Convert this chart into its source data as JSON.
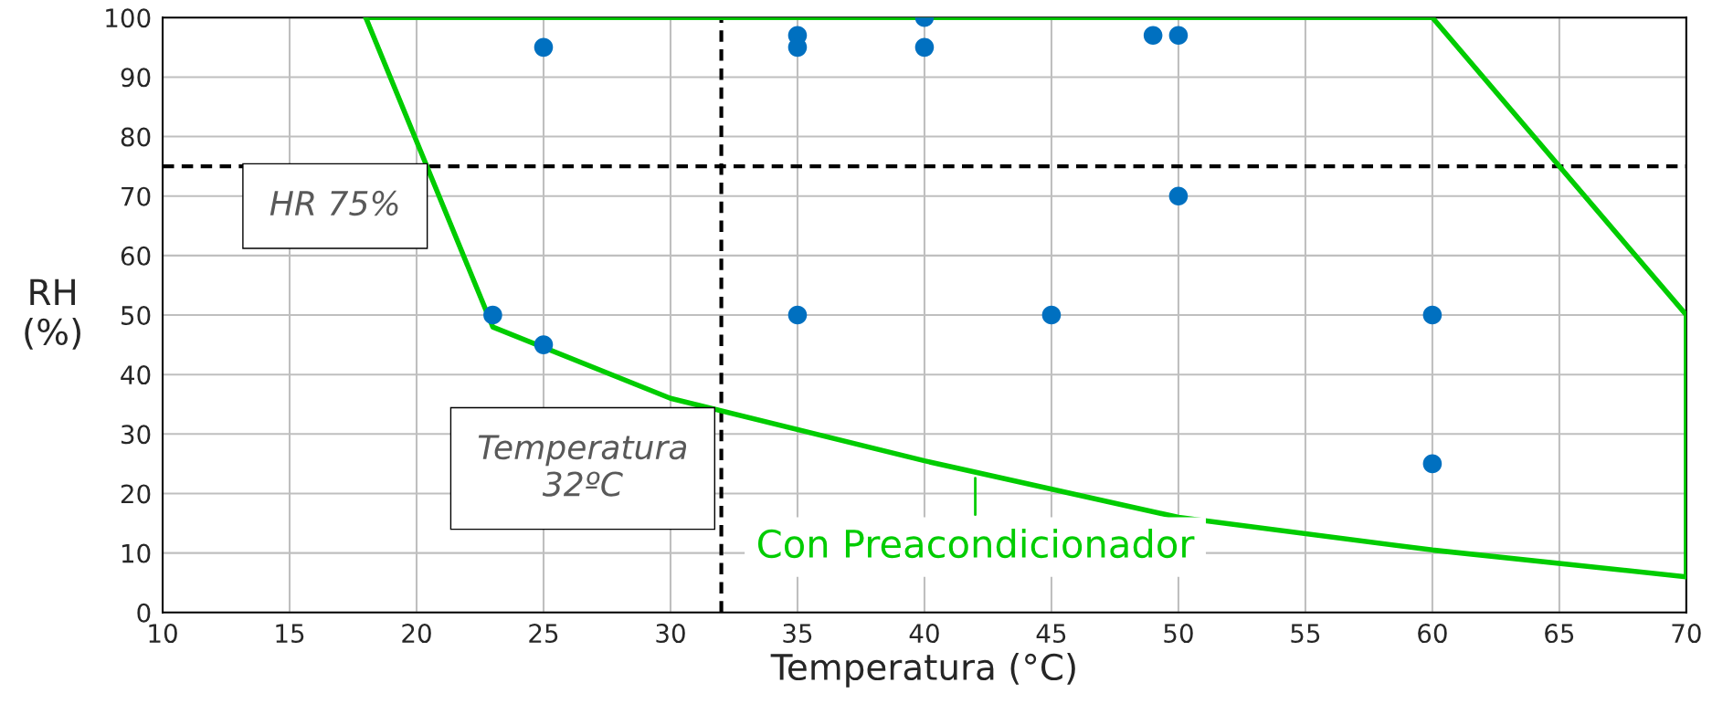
{
  "chart_data": {
    "type": "line",
    "xlabel": "Temperatura (°C)",
    "ylabel": "RH\n(%)",
    "xlim": [
      10,
      70
    ],
    "ylim": [
      0,
      100
    ],
    "xticks": [
      10,
      15,
      20,
      25,
      30,
      35,
      40,
      45,
      50,
      55,
      60,
      65,
      70
    ],
    "yticks": [
      0,
      10,
      20,
      30,
      40,
      50,
      60,
      70,
      80,
      90,
      100
    ],
    "grid": true,
    "legend": false,
    "marker": "circle",
    "series": [
      {
        "type": "scatter",
        "color": "#0070c0",
        "x": [
          23,
          25,
          25,
          35,
          35,
          35,
          40,
          40,
          45,
          49,
          50,
          50,
          60,
          60
        ],
        "values": [
          50,
          95,
          45,
          97,
          95,
          50,
          100,
          95,
          50,
          97,
          97,
          70,
          50,
          25
        ]
      },
      {
        "color": "#00cc00",
        "marker": "none",
        "line_style": "solid",
        "x": [
          18,
          23,
          30,
          40,
          50,
          60,
          70
        ],
        "values": [
          100,
          48,
          36,
          25.5,
          16,
          10.5,
          6
        ]
      },
      {
        "color": "#00cc00",
        "marker": "none",
        "line_style": "solid",
        "x": [
          18,
          60,
          70,
          70
        ],
        "values": [
          100,
          100,
          50,
          6
        ]
      }
    ],
    "ref_lines": [
      {
        "axis": "y",
        "value": 75,
        "label": "HR 75%",
        "color": "#000000",
        "line_style": "dashed"
      },
      {
        "axis": "x",
        "value": 32,
        "label": "Temperatura\n32ºC",
        "color": "#000000",
        "line_style": "dashed"
      }
    ],
    "annotations": [
      {
        "text": "Con Preacondicionador",
        "x": 42,
        "y": 23
      }
    ]
  }
}
